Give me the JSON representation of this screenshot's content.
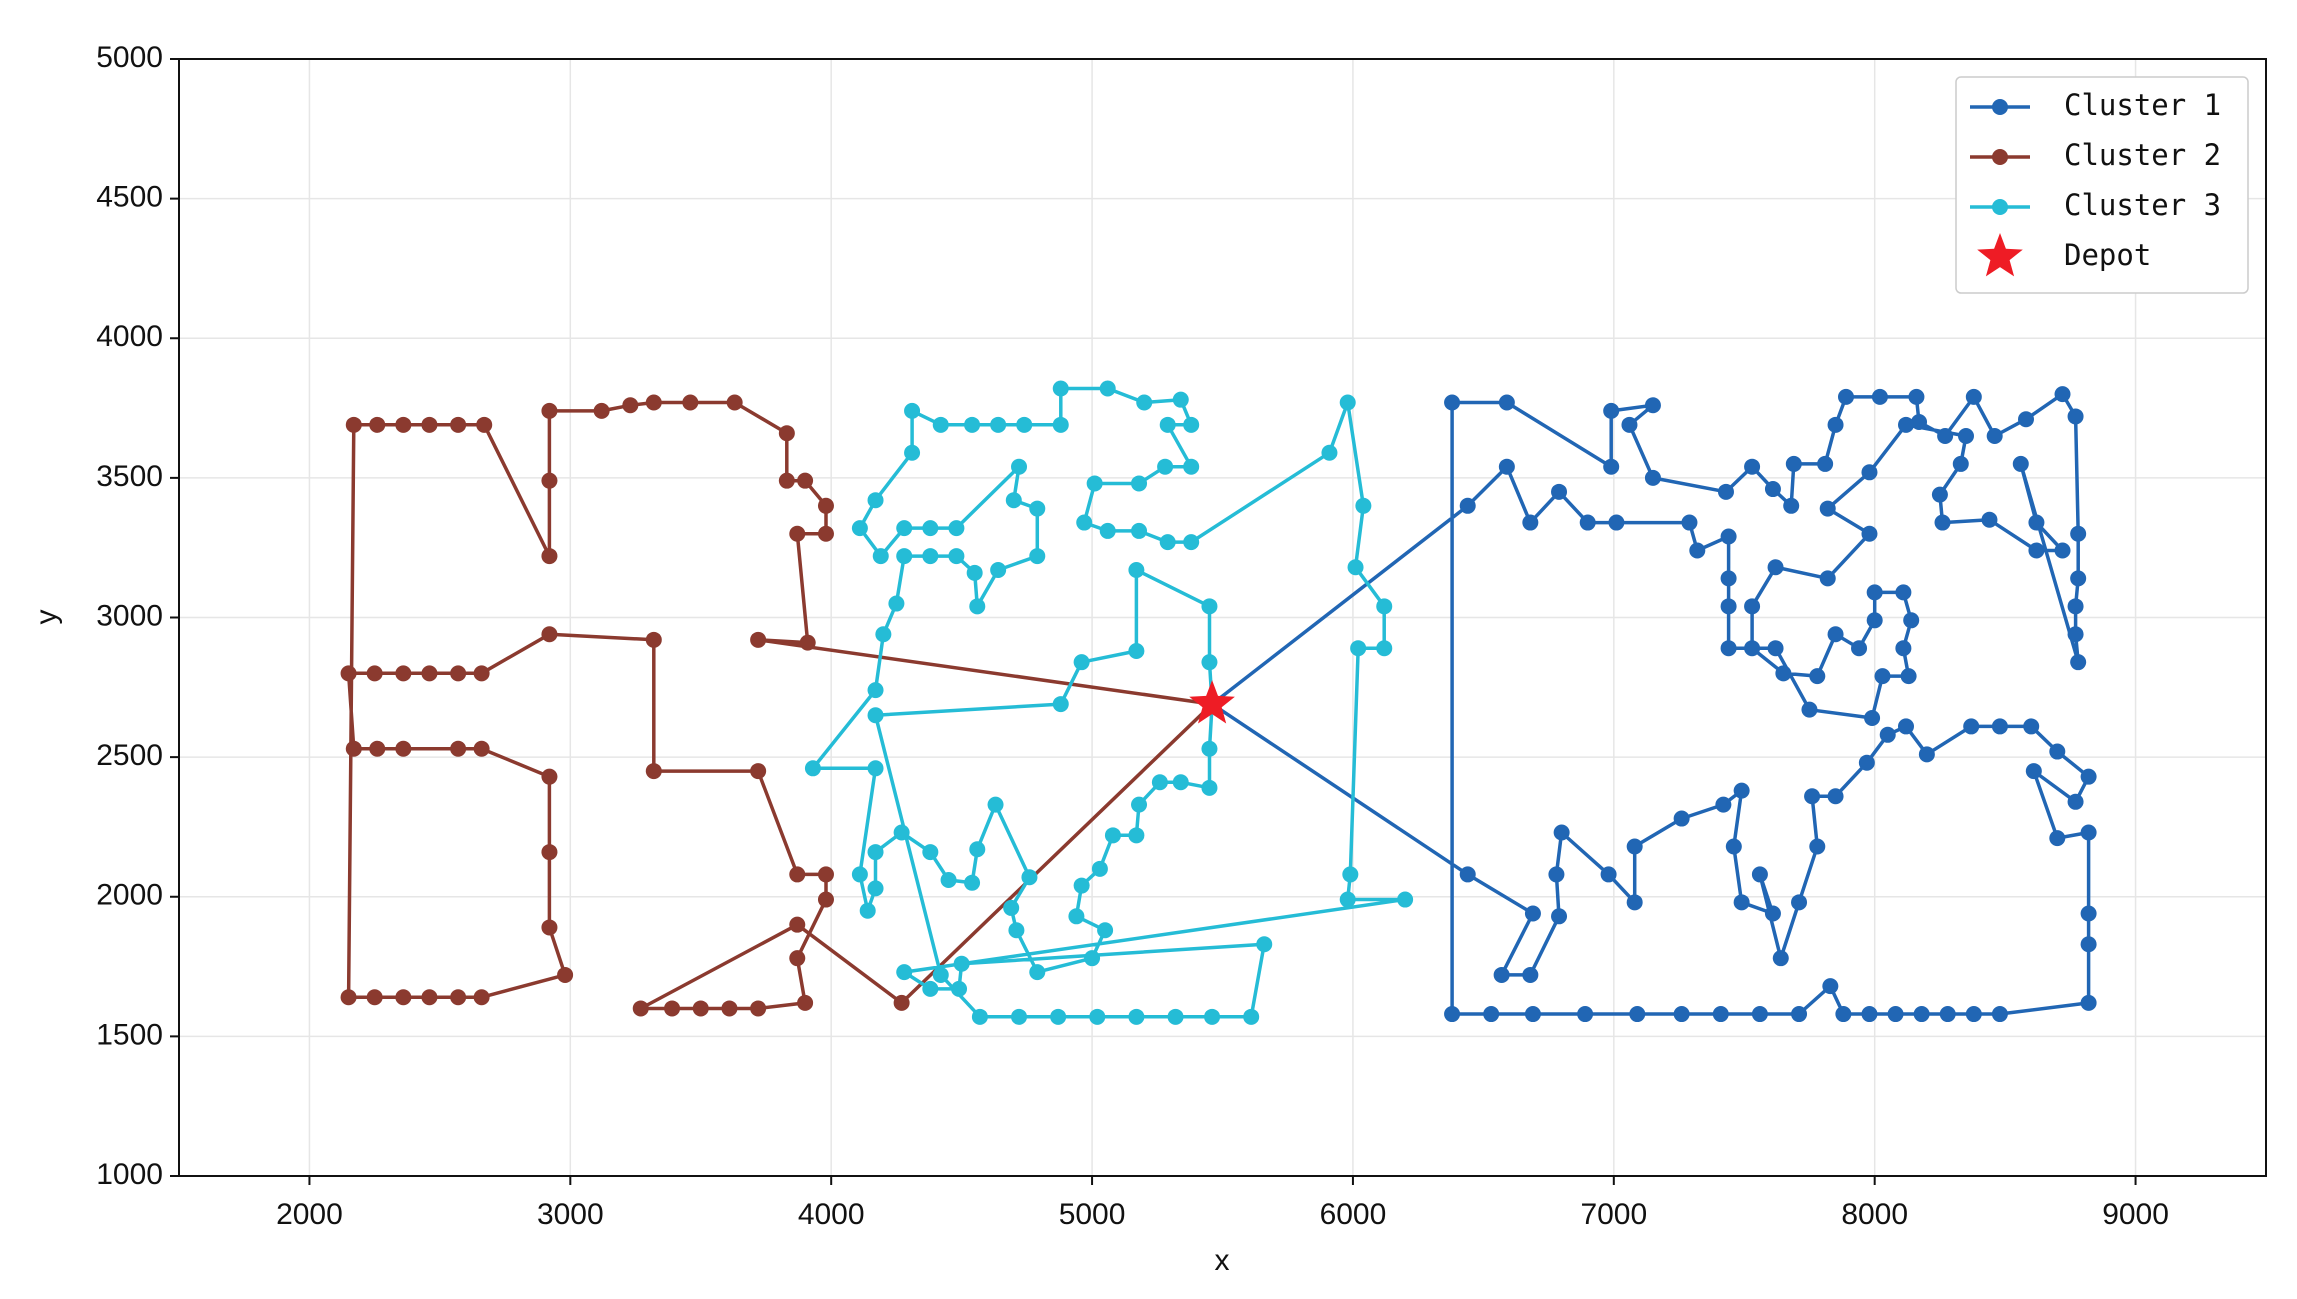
{
  "chart_data": {
    "type": "line",
    "xlabel": "x",
    "ylabel": "y",
    "xlim": [
      1500,
      9500
    ],
    "ylim": [
      1000,
      5000
    ],
    "xticks": [
      2000,
      3000,
      4000,
      5000,
      6000,
      7000,
      8000,
      9000
    ],
    "yticks": [
      1000,
      1500,
      2000,
      2500,
      3000,
      3500,
      4000,
      4500,
      5000
    ],
    "grid": true,
    "legend": "upper right",
    "series": [
      {
        "name": "Cluster 1",
        "color": "#2166b4",
        "marker": "circle",
        "x": [
          5460,
          6440,
          6690,
          6570,
          6680,
          6790,
          6780,
          6800,
          6980,
          7080,
          7080,
          7260,
          7420,
          7490,
          7460,
          7490,
          7610,
          7560,
          7640,
          7710,
          7780,
          7760,
          7850,
          7970,
          8050,
          8120,
          8200,
          8370,
          8480,
          8600,
          8700,
          8820,
          8770,
          8610,
          8700,
          8820,
          8820,
          8820,
          8820,
          8480,
          8380,
          8280,
          8180,
          8080,
          7980,
          7880,
          7830,
          7710,
          7560,
          7410,
          7260,
          7090,
          6890,
          6690,
          6530,
          6380,
          6380,
          6590,
          6990,
          6990,
          7150,
          7060,
          7150,
          7430,
          7530,
          7610,
          7680,
          7690,
          7810,
          7850,
          7890,
          8020,
          8160,
          8170,
          8270,
          8380,
          8460,
          8580,
          8720,
          8770,
          8780,
          8780,
          8770,
          8770,
          8780,
          8560,
          8620,
          8720,
          8620,
          8440,
          8260,
          8250,
          8330,
          8350,
          8120,
          7980,
          7820,
          7980,
          7820,
          7620,
          7530,
          7530,
          7650,
          7780,
          7850,
          7940,
          8000,
          8000,
          8110,
          8140,
          8110,
          8130,
          8030,
          7990,
          7750,
          7620,
          7440,
          7440,
          7440,
          7440,
          7320,
          7290,
          7010,
          6900,
          6790,
          6680,
          6590,
          6440,
          5460
        ],
        "values": [
          2690,
          2080,
          1940,
          1720,
          1720,
          1930,
          2080,
          2230,
          2080,
          1980,
          2180,
          2280,
          2330,
          2380,
          2180,
          1980,
          1940,
          2080,
          1780,
          1980,
          2180,
          2360,
          2360,
          2480,
          2580,
          2610,
          2510,
          2610,
          2610,
          2610,
          2520,
          2430,
          2340,
          2450,
          2210,
          2230,
          1940,
          1830,
          1620,
          1580,
          1580,
          1580,
          1580,
          1580,
          1580,
          1580,
          1680,
          1580,
          1580,
          1580,
          1580,
          1580,
          1580,
          1580,
          1580,
          1580,
          3770,
          3770,
          3540,
          3740,
          3760,
          3690,
          3500,
          3450,
          3540,
          3460,
          3400,
          3550,
          3550,
          3690,
          3790,
          3790,
          3790,
          3700,
          3650,
          3790,
          3650,
          3710,
          3800,
          3720,
          3300,
          3140,
          3040,
          2940,
          2840,
          3550,
          3340,
          3240,
          3240,
          3350,
          3340,
          3440,
          3550,
          3650,
          3690,
          3520,
          3390,
          3300,
          3140,
          3180,
          3040,
          2890,
          2800,
          2790,
          2940,
          2890,
          2990,
          3090,
          3090,
          2990,
          2890,
          2790,
          2790,
          2640,
          2670,
          2890,
          2890,
          3040,
          3140,
          3290,
          3240,
          3340,
          3340,
          3340,
          3450,
          3340,
          3540,
          3400,
          2690
        ]
      },
      {
        "name": "Cluster 2",
        "color": "#8b3a2f",
        "marker": "circle",
        "x": [
          5460,
          3720,
          3910,
          3870,
          3980,
          3980,
          3900,
          3830,
          3830,
          3630,
          3460,
          3320,
          3230,
          3120,
          2920,
          2920,
          2920,
          2670,
          2570,
          2460,
          2360,
          2260,
          2170,
          2150,
          2250,
          2360,
          2460,
          2570,
          2660,
          2980,
          2920,
          2920,
          2920,
          2660,
          2570,
          2360,
          2260,
          2170,
          2150,
          2250,
          2360,
          2460,
          2570,
          2660,
          2920,
          3320,
          3320,
          3720,
          3870,
          3980,
          3980,
          3870,
          3900,
          3720,
          3610,
          3500,
          3390,
          3270,
          3870,
          4270,
          5460
        ],
        "values": [
          2690,
          2920,
          2910,
          3300,
          3300,
          3400,
          3490,
          3490,
          3660,
          3770,
          3770,
          3770,
          3760,
          3740,
          3740,
          3490,
          3220,
          3690,
          3690,
          3690,
          3690,
          3690,
          3690,
          1640,
          1640,
          1640,
          1640,
          1640,
          1640,
          1720,
          1890,
          2160,
          2430,
          2530,
          2530,
          2530,
          2530,
          2530,
          2800,
          2800,
          2800,
          2800,
          2800,
          2800,
          2940,
          2920,
          2450,
          2450,
          2080,
          2080,
          1990,
          1780,
          1620,
          1600,
          1600,
          1600,
          1600,
          1600,
          1900,
          1620,
          2690
        ]
      },
      {
        "name": "Cluster 3",
        "color": "#25bcd6",
        "marker": "circle",
        "x": [
          5460,
          5450,
          5450,
          5340,
          5260,
          5180,
          5170,
          5080,
          5030,
          4960,
          4940,
          5050,
          5000,
          4790,
          4710,
          4690,
          4760,
          4630,
          4560,
          4540,
          4450,
          4380,
          4270,
          4170,
          4170,
          4140,
          4110,
          4170,
          3930,
          4170,
          4200,
          4250,
          4280,
          4380,
          4480,
          4550,
          4560,
          4640,
          4790,
          4790,
          4700,
          4720,
          4480,
          4380,
          4280,
          4190,
          4110,
          4170,
          4310,
          4310,
          4420,
          4540,
          4640,
          4740,
          4880,
          4880,
          5060,
          5200,
          5340,
          5380,
          5290,
          5380,
          5280,
          5180,
          5010,
          4970,
          5060,
          5180,
          5290,
          5380,
          5910,
          5980,
          6040,
          6010,
          6120,
          6120,
          6020,
          5990,
          5980,
          6200,
          4280,
          4380,
          4490,
          4500,
          5660,
          5610,
          5460,
          5320,
          5170,
          5020,
          4870,
          4720,
          4570,
          4420,
          4170,
          4880,
          4960,
          5170,
          5170,
          5450,
          5450,
          5460
        ],
        "values": [
          2690,
          2530,
          2390,
          2410,
          2410,
          2330,
          2220,
          2220,
          2100,
          2040,
          1930,
          1880,
          1780,
          1730,
          1880,
          1960,
          2070,
          2330,
          2170,
          2050,
          2060,
          2160,
          2230,
          2160,
          2030,
          1950,
          2080,
          2460,
          2460,
          2740,
          2940,
          3050,
          3220,
          3220,
          3220,
          3160,
          3040,
          3170,
          3220,
          3390,
          3420,
          3540,
          3320,
          3320,
          3320,
          3220,
          3320,
          3420,
          3590,
          3740,
          3690,
          3690,
          3690,
          3690,
          3690,
          3820,
          3820,
          3770,
          3780,
          3690,
          3690,
          3540,
          3540,
          3480,
          3480,
          3340,
          3310,
          3310,
          3270,
          3270,
          3590,
          3770,
          3400,
          3180,
          3040,
          2890,
          2890,
          2080,
          1990,
          1990,
          1730,
          1670,
          1670,
          1760,
          1830,
          1570,
          1570,
          1570,
          1570,
          1570,
          1570,
          1570,
          1570,
          1720,
          2650,
          2690,
          2840,
          2880,
          3170,
          3040,
          2840,
          2690
        ]
      },
      {
        "name": "Depot",
        "color": "#ee1c25",
        "marker": "star",
        "x": [
          5460
        ],
        "values": [
          2690
        ]
      }
    ]
  }
}
